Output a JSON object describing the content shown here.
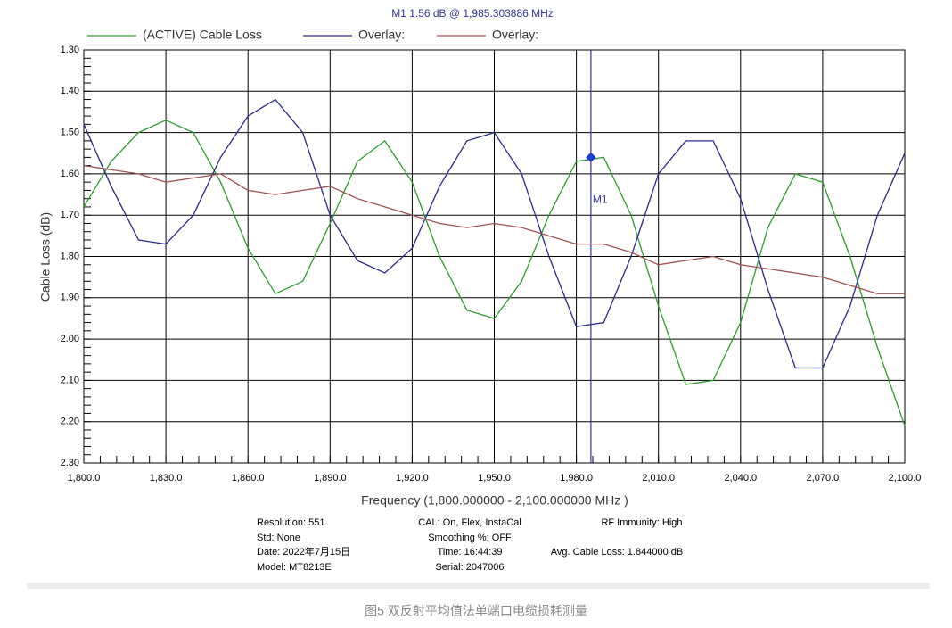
{
  "chart_data": {
    "type": "line",
    "title": "M1  1.56 dB @ 1,985.303886 MHz",
    "x_label": "Frequency (1,800.000000 - 2,100.000000 MHz )",
    "y_label": "Cable Loss (dB)",
    "x": [
      1800,
      1810,
      1820,
      1830,
      1840,
      1850,
      1860,
      1870,
      1880,
      1890,
      1900,
      1910,
      1920,
      1930,
      1940,
      1950,
      1960,
      1970,
      1980,
      1990,
      2000,
      2010,
      2020,
      2030,
      2040,
      2050,
      2060,
      2070,
      2080,
      2090,
      2100
    ],
    "series": [
      {
        "name": "(ACTIVE) Cable Loss",
        "color": "#2e9a2e",
        "values": [
          1.68,
          1.57,
          1.5,
          1.47,
          1.5,
          1.62,
          1.78,
          1.89,
          1.86,
          1.72,
          1.57,
          1.52,
          1.62,
          1.8,
          1.93,
          1.95,
          1.86,
          1.7,
          1.57,
          1.56,
          1.7,
          1.92,
          2.11,
          2.1,
          1.96,
          1.73,
          1.6,
          1.62,
          1.8,
          2.02,
          2.21
        ]
      },
      {
        "name": "Overlay:",
        "color": "#2a2a8c",
        "values": [
          1.48,
          1.63,
          1.76,
          1.77,
          1.7,
          1.56,
          1.46,
          1.42,
          1.5,
          1.7,
          1.81,
          1.84,
          1.78,
          1.63,
          1.52,
          1.5,
          1.6,
          1.8,
          1.97,
          1.96,
          1.8,
          1.6,
          1.52,
          1.52,
          1.66,
          1.88,
          2.07,
          2.07,
          1.92,
          1.7,
          1.55
        ]
      },
      {
        "name": "Overlay:",
        "color": "#a05050",
        "values": [
          1.58,
          1.59,
          1.6,
          1.62,
          1.61,
          1.6,
          1.64,
          1.65,
          1.64,
          1.63,
          1.66,
          1.68,
          1.7,
          1.72,
          1.73,
          1.72,
          1.73,
          1.75,
          1.77,
          1.77,
          1.79,
          1.82,
          1.81,
          1.8,
          1.82,
          1.83,
          1.84,
          1.85,
          1.87,
          1.89,
          1.89
        ]
      }
    ],
    "xlim": [
      1800,
      2100
    ],
    "xticks": [
      {
        "value": 1800,
        "label": "1,800.0"
      },
      {
        "value": 1830,
        "label": "1,830.0"
      },
      {
        "value": 1860,
        "label": "1,860.0"
      },
      {
        "value": 1890,
        "label": "1,890.0"
      },
      {
        "value": 1920,
        "label": "1,920.0"
      },
      {
        "value": 1950,
        "label": "1,950.0"
      },
      {
        "value": 1980,
        "label": "1,980.0"
      },
      {
        "value": 2010,
        "label": "2,010.0"
      },
      {
        "value": 2040,
        "label": "2,040.0"
      },
      {
        "value": 2070,
        "label": "2,070.0"
      },
      {
        "value": 2100,
        "label": "2,100.0"
      }
    ],
    "ylim": [
      2.3,
      1.3
    ],
    "yticks": [
      {
        "value": 1.3,
        "label": "1.30"
      },
      {
        "value": 1.4,
        "label": "1.40"
      },
      {
        "value": 1.5,
        "label": "1.50"
      },
      {
        "value": 1.6,
        "label": "1.60"
      },
      {
        "value": 1.7,
        "label": "1.70"
      },
      {
        "value": 1.8,
        "label": "1.80"
      },
      {
        "value": 1.9,
        "label": "1.90"
      },
      {
        "value": 2.0,
        "label": "2.00"
      },
      {
        "value": 2.1,
        "label": "2.10"
      },
      {
        "value": 2.2,
        "label": "2.20"
      },
      {
        "value": 2.3,
        "label": "2.30"
      }
    ],
    "grid": true,
    "marker": {
      "label": "M1",
      "x": 1985.303886,
      "y": 1.56,
      "color": "#1a3fd0"
    },
    "info": [
      [
        "Resolution: 551",
        "Std: None",
        "Date: 2022年7月15日",
        "Model: MT8213E"
      ],
      [
        "CAL: On, Flex, InstaCal",
        "Smoothing %:  OFF",
        "Time: 16:44:39",
        "Serial: 2047006"
      ],
      [
        "RF Immunity: High",
        "Avg. Cable Loss: 1.844000 dB"
      ]
    ]
  },
  "caption": "图5 双反射平均值法单端口电缆损耗测量"
}
